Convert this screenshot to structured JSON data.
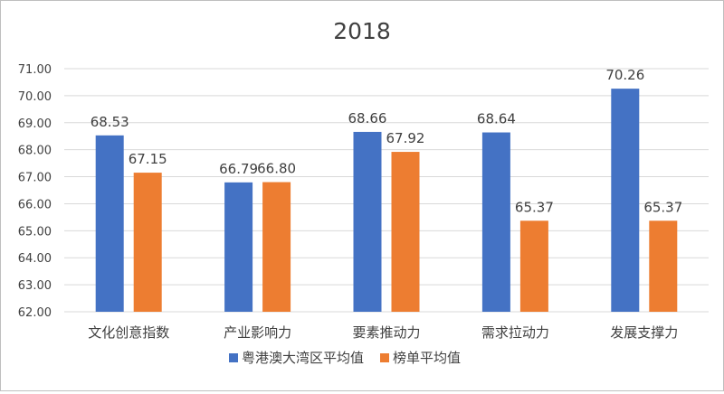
{
  "chart_data": {
    "type": "bar",
    "title": "2018",
    "categories": [
      "文化创意指数",
      "产业影响力",
      "要素推动力",
      "需求拉动力",
      "发展支撑力"
    ],
    "series": [
      {
        "name": "粤港澳大湾区平均值",
        "color": "#4472C4",
        "values": [
          68.53,
          66.79,
          68.66,
          68.64,
          70.26
        ],
        "labels": [
          "68.53",
          "66.79",
          "68.66",
          "68.64",
          "70.26"
        ]
      },
      {
        "name": "榜单平均值",
        "color": "#ED7D31",
        "values": [
          67.15,
          66.8,
          67.92,
          65.37,
          65.37
        ],
        "labels": [
          "67.15",
          "66.80",
          "67.92",
          "65.37",
          "65.37"
        ]
      }
    ],
    "ylim": [
      62,
      71
    ],
    "yticks": [
      "62.00",
      "63.00",
      "64.00",
      "65.00",
      "66.00",
      "67.00",
      "68.00",
      "69.00",
      "70.00",
      "71.00"
    ],
    "grid": true,
    "legend": "bottom"
  }
}
